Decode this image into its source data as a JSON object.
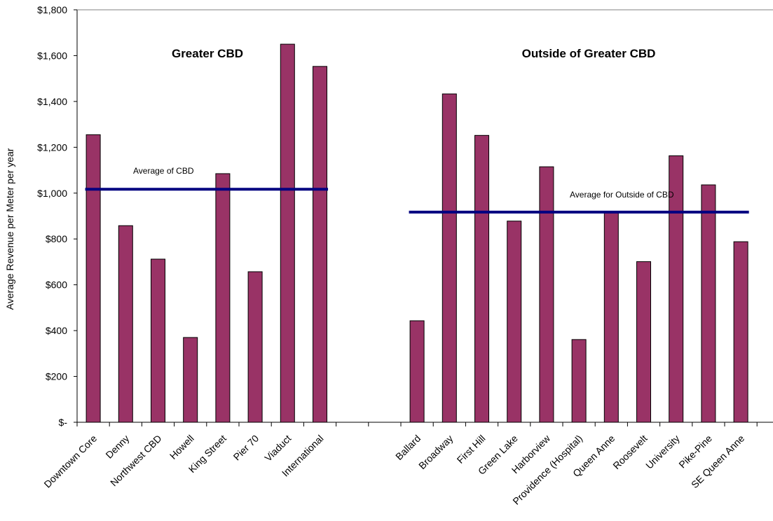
{
  "chart_data": {
    "type": "bar",
    "ylabel": "Average Revenue per Meter per year",
    "ylim": [
      0,
      1800
    ],
    "yticks": [
      0,
      200,
      400,
      600,
      800,
      1000,
      1200,
      1400,
      1600,
      1800
    ],
    "ytick_labels": [
      "$-",
      "$200",
      "$400",
      "$600",
      "$800",
      "$1,000",
      "$1,200",
      "$1,400",
      "$1,600",
      "$1,800"
    ],
    "grid": false,
    "colors": {
      "bar": "#993366",
      "average_line": "#000080"
    },
    "groups": [
      {
        "title": "Greater CBD",
        "categories": [
          "Downtown Core",
          "Denny",
          "Northwest CBD",
          "Howell",
          "King Street",
          "Pier 70",
          "Viaduct",
          "International"
        ],
        "values": [
          1255,
          858,
          712,
          370,
          1085,
          657,
          1650,
          1553
        ],
        "average": {
          "label": "Average of CBD",
          "value": 1017
        }
      },
      {
        "title": "Outside of Greater CBD",
        "categories": [
          "Ballard",
          "Broadway",
          "First Hill",
          "Green Lake",
          "Harborview",
          "Providence (Hospital)",
          "Queen Anne",
          "Roosevelt",
          "University",
          "Pike-Pine",
          "SE Queen Anne"
        ],
        "values": [
          443,
          1433,
          1252,
          878,
          1115,
          361,
          918,
          701,
          1163,
          1036,
          788
        ],
        "average": {
          "label": "Average for Outside of CBD",
          "value": 917
        }
      }
    ]
  }
}
